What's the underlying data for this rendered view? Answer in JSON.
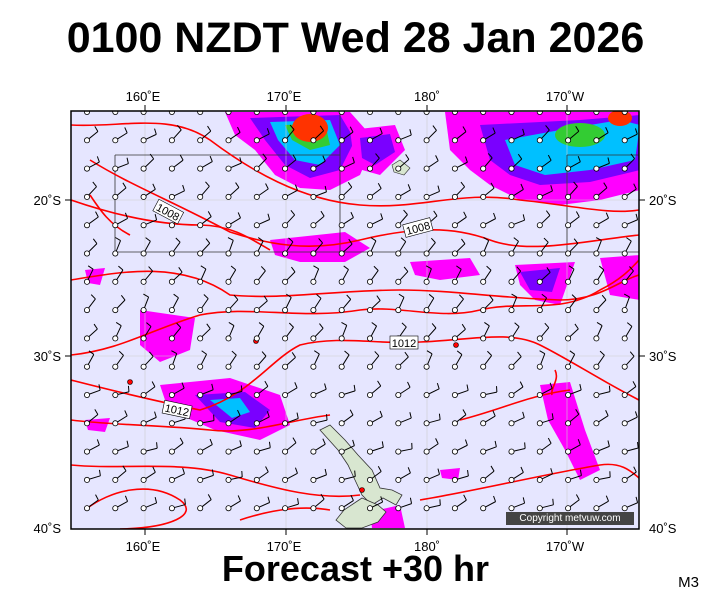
{
  "header": {
    "title": "0100 NZDT Wed 28 Jan 2026"
  },
  "footer": {
    "forecast": "Forecast +30 hr",
    "model_code": "M3"
  },
  "map": {
    "copyright": "Copyright metvuw.com",
    "lon_labels": [
      "160˚E",
      "170˚E",
      "180˚",
      "170˚W"
    ],
    "lat_labels": [
      "20˚S",
      "30˚S",
      "40˚S"
    ],
    "isobar_labels": [
      "1008",
      "1008",
      "1012",
      "1012"
    ],
    "colors": {
      "ocean": "#e6e6ff",
      "isobar": "#ff0000",
      "rain_light": "#ff00ff",
      "rain_mid": "#7a00ff",
      "rain_heavy": "#00c0ff",
      "rain_extreme": "#ff3300",
      "land": "#d8e6d0"
    }
  }
}
